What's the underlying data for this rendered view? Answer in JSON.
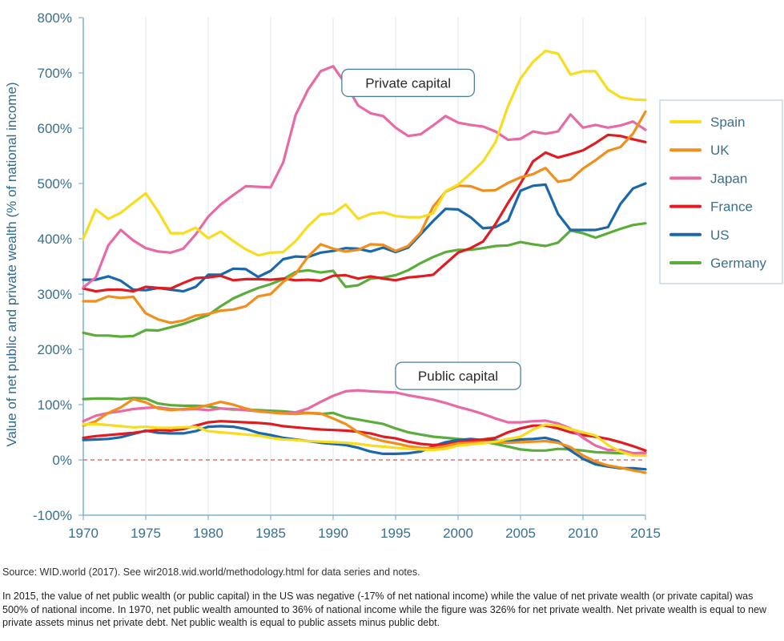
{
  "chart_data": {
    "type": "line",
    "title": "",
    "xlabel": "",
    "ylabel": "Value of net public and private wealth (% of national income)",
    "xlim": [
      1970,
      2015
    ],
    "ylim": [
      -100,
      800
    ],
    "x_ticks": [
      "1970",
      "1975",
      "1980",
      "1985",
      "1990",
      "1995",
      "2000",
      "2005",
      "2010",
      "2015"
    ],
    "y_ticks": [
      {
        "value": -100,
        "label": "-100%"
      },
      {
        "value": 0,
        "label": "0%"
      },
      {
        "value": 100,
        "label": "100%"
      },
      {
        "value": 200,
        "label": "200%"
      },
      {
        "value": 300,
        "label": "300%"
      },
      {
        "value": 400,
        "label": "400%"
      },
      {
        "value": 500,
        "label": "500%"
      },
      {
        "value": 600,
        "label": "600%"
      },
      {
        "value": 700,
        "label": "700%"
      },
      {
        "value": 800,
        "label": "800%"
      }
    ],
    "grid": {
      "vertical": true,
      "horizontal": false
    },
    "reference_line": {
      "y": 0,
      "style": "dashed",
      "color": "#d9534f"
    },
    "legend_position": "right",
    "annotations": [
      {
        "text": "Private capital",
        "x": 1996,
        "y": 682
      },
      {
        "text": "Public capital",
        "x": 2000,
        "y": 152
      }
    ],
    "x": [
      1970,
      1971,
      1972,
      1973,
      1974,
      1975,
      1976,
      1977,
      1978,
      1979,
      1980,
      1981,
      1982,
      1983,
      1984,
      1985,
      1986,
      1987,
      1988,
      1989,
      1990,
      1991,
      1992,
      1993,
      1994,
      1995,
      1996,
      1997,
      1998,
      1999,
      2000,
      2001,
      2002,
      2003,
      2004,
      2005,
      2006,
      2007,
      2008,
      2009,
      2010,
      2011,
      2012,
      2013,
      2014,
      2015
    ],
    "series": [
      {
        "name": "Spain",
        "color": "#f8dc1e",
        "kind": "private",
        "values": [
          400,
          453,
          436,
          447,
          465,
          482,
          449,
          410,
          410,
          420,
          401,
          413,
          396,
          381,
          370,
          375,
          376,
          396,
          423,
          444,
          446,
          462,
          436,
          445,
          448,
          441,
          439,
          439,
          446,
          486,
          498,
          518,
          540,
          575,
          640,
          690,
          720,
          740,
          735,
          697,
          703,
          703,
          670,
          656,
          652,
          651
        ]
      },
      {
        "name": "UK",
        "color": "#f18e1c",
        "kind": "private",
        "values": [
          287,
          287,
          296,
          293,
          295,
          265,
          254,
          248,
          252,
          261,
          264,
          270,
          272,
          278,
          296,
          300,
          322,
          337,
          368,
          390,
          382,
          377,
          380,
          390,
          389,
          378,
          387,
          411,
          458,
          485,
          496,
          495,
          487,
          488,
          501,
          511,
          517,
          528,
          503,
          507,
          527,
          542,
          559,
          566,
          590,
          630
        ]
      },
      {
        "name": "Japan",
        "color": "#e86aa5",
        "kind": "private",
        "values": [
          312,
          330,
          388,
          416,
          397,
          383,
          377,
          375,
          382,
          408,
          440,
          462,
          479,
          495,
          494,
          493,
          538,
          624,
          670,
          703,
          712,
          680,
          641,
          627,
          622,
          601,
          586,
          589,
          605,
          622,
          610,
          606,
          603,
          594,
          579,
          581,
          594,
          590,
          594,
          625,
          601,
          606,
          601,
          605,
          612,
          597
        ]
      },
      {
        "name": "France",
        "color": "#e01c22",
        "kind": "private",
        "values": [
          310,
          305,
          308,
          308,
          305,
          313,
          311,
          310,
          320,
          329,
          330,
          333,
          325,
          327,
          327,
          326,
          328,
          325,
          326,
          324,
          333,
          334,
          328,
          332,
          328,
          325,
          330,
          332,
          335,
          355,
          375,
          383,
          395,
          427,
          465,
          500,
          540,
          556,
          547,
          553,
          560,
          573,
          588,
          586,
          580,
          575
        ]
      },
      {
        "name": "US",
        "color": "#1a68ac",
        "kind": "private",
        "values": [
          326,
          326,
          332,
          324,
          308,
          307,
          311,
          308,
          305,
          313,
          335,
          335,
          346,
          345,
          331,
          342,
          363,
          368,
          367,
          375,
          378,
          383,
          382,
          377,
          384,
          376,
          384,
          408,
          432,
          454,
          453,
          439,
          419,
          421,
          433,
          487,
          496,
          498,
          445,
          416,
          416,
          416,
          421,
          463,
          491,
          500
        ]
      },
      {
        "name": "Germany",
        "color": "#5aad3a",
        "kind": "private",
        "values": [
          230,
          225,
          225,
          223,
          224,
          235,
          234,
          240,
          246,
          254,
          262,
          278,
          292,
          302,
          311,
          318,
          327,
          340,
          343,
          339,
          342,
          313,
          316,
          328,
          330,
          334,
          343,
          356,
          367,
          376,
          380,
          380,
          383,
          387,
          388,
          394,
          390,
          387,
          393,
          415,
          410,
          402,
          410,
          418,
          425,
          428
        ]
      },
      {
        "name": "Spain",
        "color": "#f8dc1e",
        "kind": "public",
        "values": [
          64,
          65,
          63,
          61,
          59,
          60,
          58,
          58,
          59,
          60,
          52,
          50,
          48,
          46,
          44,
          40,
          37,
          36,
          34,
          33,
          32,
          31,
          29,
          26,
          24,
          22,
          20,
          19,
          18,
          20,
          26,
          28,
          30,
          33,
          38,
          42,
          55,
          64,
          62,
          56,
          50,
          44,
          27,
          15,
          8,
          8
        ]
      },
      {
        "name": "UK",
        "color": "#f18e1c",
        "kind": "public",
        "values": [
          62,
          70,
          85,
          95,
          110,
          104,
          93,
          90,
          92,
          94,
          99,
          105,
          100,
          93,
          88,
          86,
          84,
          83,
          85,
          84,
          75,
          65,
          50,
          40,
          34,
          30,
          25,
          22,
          21,
          25,
          30,
          31,
          32,
          32,
          31,
          32,
          33,
          34,
          31,
          23,
          8,
          -3,
          -10,
          -14,
          -19,
          -23
        ]
      },
      {
        "name": "Japan",
        "color": "#e86aa5",
        "kind": "public",
        "values": [
          70,
          80,
          85,
          88,
          92,
          94,
          95,
          92,
          91,
          92,
          90,
          93,
          92,
          90,
          88,
          86,
          84,
          86,
          93,
          105,
          116,
          124,
          126,
          124,
          123,
          122,
          117,
          113,
          109,
          103,
          96,
          90,
          83,
          75,
          68,
          68,
          70,
          71,
          66,
          57,
          40,
          26,
          18,
          18,
          12,
          12
        ]
      },
      {
        "name": "France",
        "color": "#e01c22",
        "kind": "public",
        "values": [
          40,
          43,
          45,
          47,
          49,
          52,
          54,
          53,
          56,
          62,
          68,
          70,
          69,
          68,
          67,
          65,
          61,
          59,
          57,
          55,
          54,
          53,
          51,
          48,
          42,
          39,
          33,
          29,
          27,
          28,
          32,
          35,
          37,
          40,
          50,
          57,
          62,
          62,
          57,
          50,
          45,
          42,
          38,
          32,
          25,
          17
        ]
      },
      {
        "name": "US",
        "color": "#1a68ac",
        "kind": "public",
        "values": [
          36,
          37,
          38,
          41,
          47,
          53,
          49,
          48,
          48,
          52,
          60,
          61,
          60,
          56,
          49,
          45,
          40,
          37,
          34,
          31,
          29,
          27,
          22,
          15,
          11,
          11,
          12,
          15,
          25,
          32,
          36,
          38,
          36,
          35,
          33,
          37,
          38,
          40,
          34,
          17,
          2,
          -8,
          -12,
          -15,
          -15,
          -17
        ]
      },
      {
        "name": "Germany",
        "color": "#5aad3a",
        "kind": "public",
        "values": [
          110,
          111,
          111,
          110,
          112,
          111,
          102,
          99,
          98,
          98,
          97,
          93,
          91,
          91,
          90,
          89,
          88,
          86,
          85,
          83,
          85,
          77,
          73,
          69,
          65,
          57,
          50,
          46,
          42,
          40,
          38,
          36,
          33,
          29,
          24,
          19,
          17,
          17,
          20,
          19,
          17,
          14,
          13,
          12,
          12,
          13
        ]
      }
    ]
  },
  "footer": {
    "source": "Source: WID.world (2017). See wir2018.wid.world/methodology.html for data series and notes.",
    "note": "In 2015, the value of net public wealth (or public capital) in the US was negative (-17% of net national income) while the value of net private wealth (or private capital) was 500% of national income. In 1970, net public wealth amounted to 36% of national income while the figure was 326% for net private wealth. Net private wealth is equal to new private assets minus net private debt. Net public wealth is equal to public assets minus public debt."
  }
}
